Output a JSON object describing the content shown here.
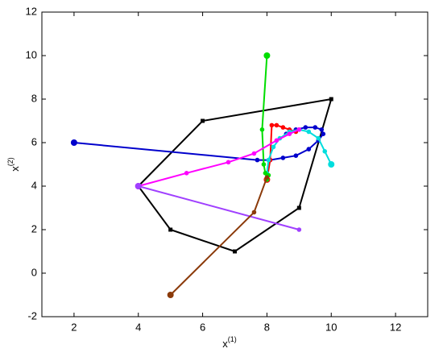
{
  "chart_data": {
    "type": "line",
    "xlabel": "x",
    "xlabel_sup": "(1)",
    "ylabel": "x",
    "ylabel_sup": "(2)",
    "xlim": [
      1,
      13
    ],
    "ylim": [
      -2,
      12
    ],
    "xticks": [
      2,
      4,
      6,
      8,
      10,
      12
    ],
    "yticks": [
      -2,
      0,
      2,
      4,
      6,
      8,
      10,
      12
    ],
    "series": [
      {
        "color": "#000000",
        "marker": "square",
        "x": [
          4,
          6,
          10,
          9,
          7,
          5,
          4
        ],
        "values": [
          4,
          7,
          8,
          3,
          1,
          2,
          4
        ]
      },
      {
        "color": "#0000cc",
        "marker": "circle",
        "x": [
          2,
          7.7,
          8.1,
          8.5,
          8.9,
          9.3,
          9.6,
          9.75,
          9.7,
          9.5,
          9.2,
          8.9,
          8.6
        ],
        "values": [
          6,
          5.2,
          5.2,
          5.3,
          5.4,
          5.7,
          6.1,
          6.4,
          6.6,
          6.7,
          6.7,
          6.6,
          6.4
        ]
      },
      {
        "color": "#ff0000",
        "marker": "circle",
        "x": [
          8,
          8.1,
          8.15,
          8.3,
          8.5,
          8.7,
          8.9,
          9
        ],
        "values": [
          4.3,
          5.2,
          6.8,
          6.8,
          6.7,
          6.6,
          6.5,
          6.6
        ]
      },
      {
        "color": "#00dddd",
        "marker": "circle",
        "x": [
          10,
          9.8,
          9.6,
          9.3,
          9,
          8.7,
          8.4,
          8.2,
          8.05,
          8
        ],
        "values": [
          5,
          5.6,
          6.2,
          6.5,
          6.6,
          6.5,
          6.2,
          5.8,
          5.2,
          4.6
        ]
      },
      {
        "color": "#00dd00",
        "marker": "circle",
        "x": [
          8,
          7.85,
          7.9,
          7.95,
          8,
          8.05
        ],
        "values": [
          10,
          6.6,
          5,
          4.6,
          4.3,
          4.5
        ]
      },
      {
        "color": "#ff00ff",
        "marker": "circle",
        "x": [
          4,
          5.5,
          6.8,
          7.6,
          8.3,
          8.7,
          9
        ],
        "values": [
          4,
          4.6,
          5.1,
          5.5,
          6.1,
          6.4,
          6.6
        ]
      },
      {
        "color": "#a040ff",
        "marker": "circle",
        "x": [
          4,
          9
        ],
        "values": [
          4,
          2
        ]
      },
      {
        "color": "#8b3a0a",
        "marker": "circle",
        "x": [
          5,
          7.6,
          8
        ],
        "values": [
          -1,
          2.8,
          4.4
        ]
      }
    ]
  }
}
